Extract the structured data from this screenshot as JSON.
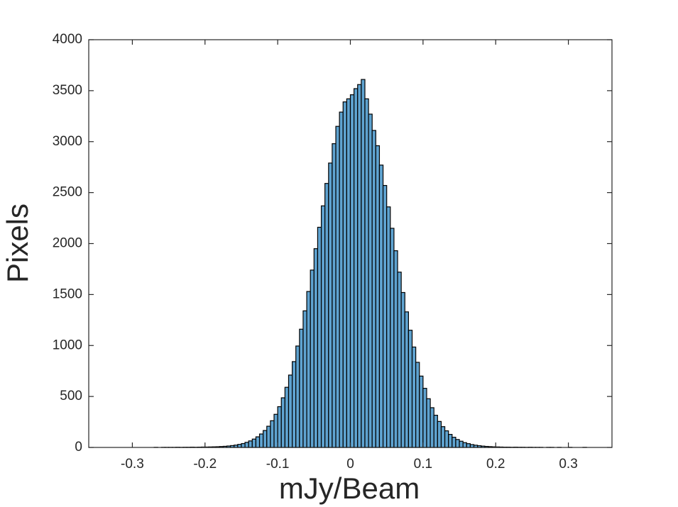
{
  "chart_data": {
    "type": "histogram",
    "xlabel": "mJy/Beam",
    "ylabel": "Pixels",
    "xlim": [
      -0.36,
      0.36
    ],
    "ylim": [
      0,
      4000
    ],
    "xticks": [
      -0.3,
      -0.2,
      -0.1,
      0,
      0.1,
      0.2,
      0.3
    ],
    "yticks": [
      0,
      500,
      1000,
      1500,
      2000,
      2500,
      3000,
      3500,
      4000
    ],
    "color": "#5fa3d0",
    "edgecolor": "#000000",
    "bins": [
      -0.29,
      -0.285,
      -0.28,
      -0.275,
      -0.27,
      -0.265,
      -0.26,
      -0.255,
      -0.25,
      -0.245,
      -0.24,
      -0.235,
      -0.23,
      -0.225,
      -0.22,
      -0.215,
      -0.21,
      -0.205,
      -0.2,
      -0.195,
      -0.19,
      -0.185,
      -0.18,
      -0.175,
      -0.17,
      -0.165,
      -0.16,
      -0.155,
      -0.15,
      -0.145,
      -0.14,
      -0.135,
      -0.13,
      -0.125,
      -0.12,
      -0.115,
      -0.11,
      -0.105,
      -0.1,
      -0.095,
      -0.09,
      -0.085,
      -0.08,
      -0.075,
      -0.07,
      -0.065,
      -0.06,
      -0.055,
      -0.05,
      -0.045,
      -0.04,
      -0.035,
      -0.03,
      -0.025,
      -0.02,
      -0.015,
      -0.01,
      -0.005,
      0,
      0.005,
      0.01,
      0.015,
      0.02,
      0.025,
      0.03,
      0.035,
      0.04,
      0.045,
      0.05,
      0.055,
      0.06,
      0.065,
      0.07,
      0.075,
      0.08,
      0.085,
      0.09,
      0.095,
      0.1,
      0.105,
      0.11,
      0.115,
      0.12,
      0.125,
      0.13,
      0.135,
      0.14,
      0.145,
      0.15,
      0.155,
      0.16,
      0.165,
      0.17,
      0.175,
      0.18,
      0.185,
      0.19,
      0.195,
      0.2,
      0.205,
      0.21,
      0.215,
      0.22,
      0.225,
      0.23,
      0.235,
      0.24,
      0.245,
      0.25,
      0.255,
      0.26,
      0.265,
      0.27,
      0.275,
      0.28,
      0.285,
      0.29,
      0.295,
      0.3,
      0.305,
      0.31,
      0.315,
      0.32,
      0.325,
      0.33
    ],
    "values": [
      0,
      0,
      0,
      0,
      1,
      0,
      1,
      1,
      1,
      1,
      2,
      1,
      2,
      2,
      3,
      2,
      3,
      4,
      4,
      5,
      6,
      7,
      9,
      11,
      14,
      18,
      23,
      30,
      38,
      50,
      64,
      82,
      104,
      132,
      166,
      208,
      262,
      325,
      400,
      487,
      590,
      710,
      842,
      995,
      1160,
      1340,
      1530,
      1740,
      1950,
      2160,
      2370,
      2590,
      2790,
      2980,
      3150,
      3290,
      3390,
      3420,
      3460,
      3520,
      3560,
      3610,
      3420,
      3270,
      3110,
      2960,
      2770,
      2570,
      2360,
      2150,
      1930,
      1720,
      1520,
      1330,
      1150,
      985,
      835,
      700,
      580,
      478,
      390,
      316,
      255,
      204,
      163,
      128,
      100,
      78,
      61,
      47,
      37,
      28,
      22,
      17,
      13,
      10,
      8,
      6,
      5,
      4,
      3,
      3,
      2,
      3,
      2,
      2,
      1,
      2,
      1,
      1,
      1,
      0,
      1,
      1,
      0,
      1,
      0,
      0,
      1,
      0,
      0,
      0,
      1,
      0
    ]
  }
}
